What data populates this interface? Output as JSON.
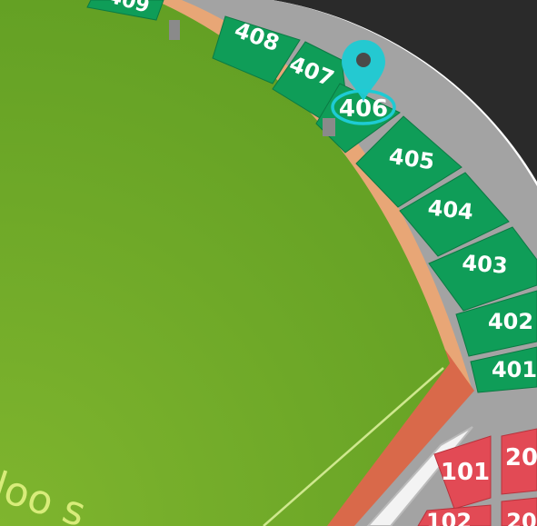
{
  "venue": {
    "field_text": "loo s",
    "selected_section": "406"
  },
  "sections_400": [
    {
      "label": "409"
    },
    {
      "label": "408"
    },
    {
      "label": "407"
    },
    {
      "label": "406"
    },
    {
      "label": "405"
    },
    {
      "label": "404"
    },
    {
      "label": "403"
    },
    {
      "label": "402"
    },
    {
      "label": "401"
    }
  ],
  "sections_100": [
    {
      "label": "101"
    },
    {
      "label": "102"
    }
  ],
  "sections_200": [
    {
      "label": "20"
    },
    {
      "label": "20"
    }
  ],
  "colors": {
    "field": "#6aa527",
    "warning_track": "#e8a676",
    "upper_deck": "#0f9d58",
    "lower_deck": "#e24a55",
    "concourse": "#9a9a9a",
    "outer_wall": "#2a2a2a",
    "marker": "#1ecbd4"
  },
  "icons": {
    "marker": "map-pin-icon"
  }
}
